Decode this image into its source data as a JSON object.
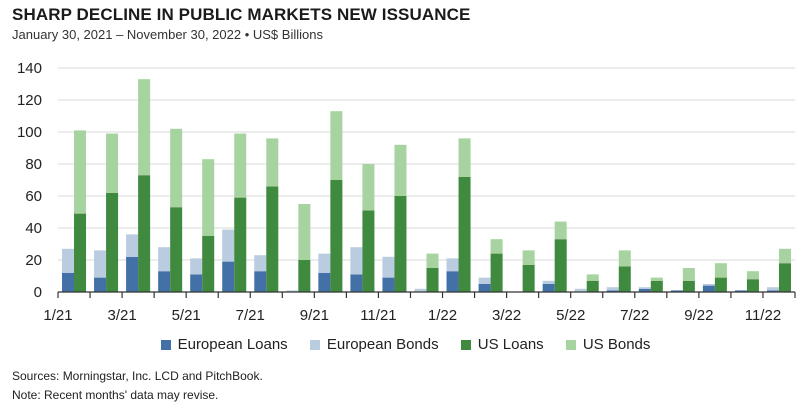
{
  "title": "SHARP DECLINE IN PUBLIC MARKETS NEW ISSUANCE",
  "subtitle": "January 30, 2021 – November 30, 2022 • US$ Billions",
  "source": "Sources: Morningstar, Inc. LCD and PitchBook.",
  "note": "Note: Recent months' data may revise.",
  "colors": {
    "european_loans": "#4470a8",
    "european_bonds": "#b9cce0",
    "us_loans": "#3f8a3f",
    "us_bonds": "#a6d3a0",
    "axis": "#333333"
  },
  "chart_data": {
    "type": "bar",
    "title": "SHARP DECLINE IN PUBLIC MARKETS NEW ISSUANCE",
    "ylabel": "US$ Billions",
    "ylim": [
      0,
      140
    ],
    "yticks": [
      0,
      20,
      40,
      60,
      80,
      100,
      120,
      140
    ],
    "categories": [
      "1/21",
      "2/21",
      "3/21",
      "4/21",
      "5/21",
      "6/21",
      "7/21",
      "8/21",
      "9/21",
      "10/21",
      "11/21",
      "12/21",
      "1/22",
      "2/22",
      "3/22",
      "4/22",
      "5/22",
      "6/22",
      "7/22",
      "8/22",
      "9/22",
      "10/22",
      "11/22"
    ],
    "xtick_labels": [
      "1/21",
      "3/21",
      "5/21",
      "7/21",
      "9/21",
      "11/21",
      "1/22",
      "3/22",
      "5/22",
      "7/22",
      "9/22",
      "11/22"
    ],
    "legend": [
      "European Loans",
      "European Bonds",
      "US Loans",
      "US Bonds"
    ],
    "series": [
      {
        "name": "European Loans",
        "values": [
          12,
          9,
          22,
          13,
          11,
          19,
          13,
          0,
          12,
          11,
          9,
          0,
          13,
          5,
          0,
          5,
          0,
          1,
          2,
          1,
          4,
          1,
          1
        ]
      },
      {
        "name": "European Bonds",
        "values": [
          15,
          17,
          14,
          15,
          10,
          20,
          10,
          1,
          12,
          17,
          13,
          2,
          8,
          4,
          0,
          2,
          2,
          2,
          1,
          0,
          1,
          0,
          2
        ]
      },
      {
        "name": "US Loans",
        "values": [
          49,
          62,
          73,
          53,
          35,
          59,
          66,
          20,
          70,
          51,
          60,
          15,
          72,
          24,
          17,
          33,
          7,
          16,
          7,
          7,
          9,
          8,
          18
        ]
      },
      {
        "name": "US Bonds",
        "values": [
          52,
          37,
          60,
          49,
          48,
          40,
          30,
          35,
          43,
          29,
          32,
          9,
          24,
          9,
          9,
          11,
          4,
          10,
          2,
          8,
          9,
          5,
          9
        ]
      }
    ]
  }
}
